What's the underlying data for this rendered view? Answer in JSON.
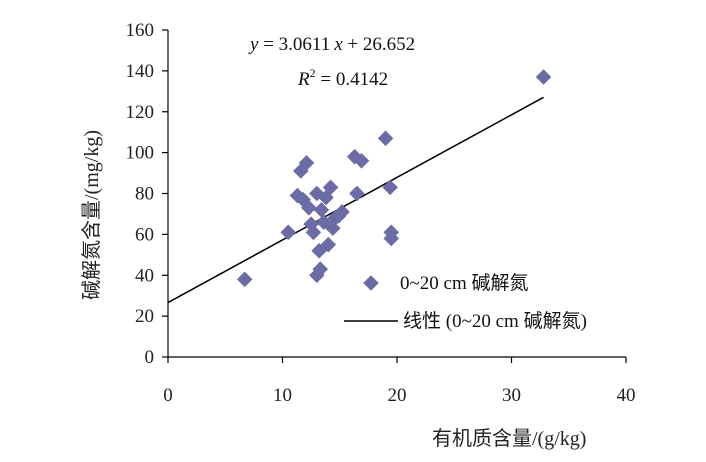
{
  "chart_data": {
    "type": "scatter",
    "xlabel": "有机质含量/(g/kg)",
    "ylabel": "碱解氮含量/(mg/kg)",
    "xlim": [
      0,
      40
    ],
    "ylim": [
      0,
      160
    ],
    "xticks": [
      "0",
      "10",
      "20",
      "30",
      "40"
    ],
    "yticks": [
      "0",
      "20",
      "40",
      "60",
      "80",
      "100",
      "120",
      "140",
      "160"
    ],
    "grid": false,
    "legend_position": "bottom-right",
    "series": [
      {
        "name": "0~20 cm 碱解氮",
        "type": "scatter",
        "color": "#6B6BA6",
        "marker": "diamond",
        "points": [
          [
            6.7,
            38
          ],
          [
            10.5,
            61
          ],
          [
            11.3,
            79
          ],
          [
            11.6,
            91
          ],
          [
            11.8,
            77
          ],
          [
            12.1,
            95
          ],
          [
            12.3,
            73
          ],
          [
            12.5,
            65
          ],
          [
            12.7,
            61
          ],
          [
            13.0,
            80
          ],
          [
            13.0,
            40
          ],
          [
            13.2,
            52
          ],
          [
            13.3,
            43
          ],
          [
            13.4,
            72
          ],
          [
            13.6,
            66
          ],
          [
            13.8,
            78
          ],
          [
            14.0,
            55
          ],
          [
            14.2,
            83
          ],
          [
            14.4,
            63
          ],
          [
            14.6,
            68
          ],
          [
            14.9,
            69
          ],
          [
            15.2,
            71
          ],
          [
            16.3,
            98
          ],
          [
            16.5,
            80
          ],
          [
            16.9,
            96
          ],
          [
            19.0,
            107
          ],
          [
            19.4,
            83
          ],
          [
            19.5,
            58
          ],
          [
            19.5,
            61
          ],
          [
            32.8,
            137
          ]
        ]
      },
      {
        "name": "线性 (0~20 cm 碱解氮)",
        "type": "line",
        "color": "#000000",
        "x": [
          0,
          32.8
        ],
        "y": [
          26.652,
          127.06
        ]
      }
    ],
    "annotations": {
      "equation": {
        "y": "y",
        "eq_mid": " = 3.0611",
        "x": "x",
        "eq_tail": " + 26.652"
      },
      "r2": {
        "R": "R",
        "sup": "2",
        "tail": " = 0.4142"
      }
    }
  }
}
